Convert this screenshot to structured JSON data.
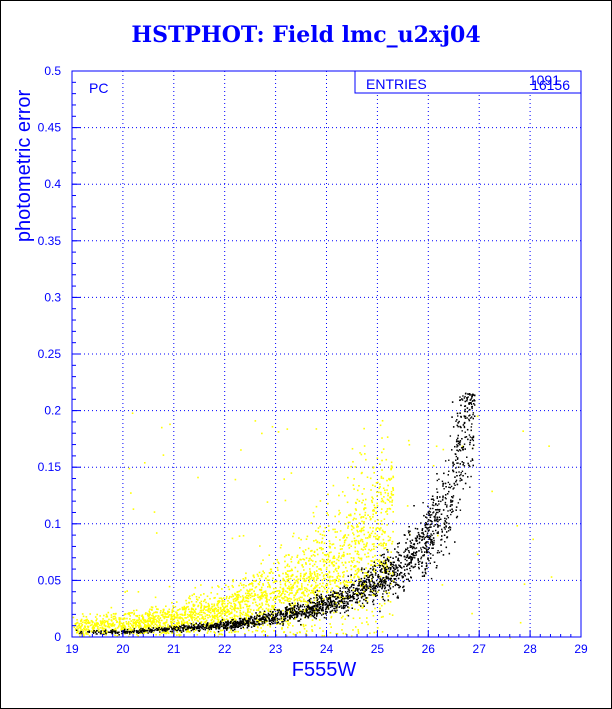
{
  "title": "HSTPHOT: Field lmc_u2xj04",
  "chart_data": {
    "type": "scatter",
    "xlabel": "F555W",
    "ylabel": "photometric error",
    "xlim": [
      19,
      29
    ],
    "ylim": [
      0,
      0.5
    ],
    "x_ticks": [
      "19",
      "20",
      "21",
      "22",
      "23",
      "24",
      "25",
      "26",
      "27",
      "28",
      "29"
    ],
    "y_ticks": [
      "0",
      "0.05",
      "0.1",
      "0.15",
      "0.2",
      "0.25",
      "0.3",
      "0.35",
      "0.4",
      "0.45",
      "0.5"
    ],
    "grid": true,
    "grid_color": "#0000ff",
    "panel_label": "PC",
    "stats_box": {
      "label": "ENTRIES",
      "values": [
        "16156",
        "1091"
      ],
      "placement": "top-right"
    },
    "series": [
      {
        "color": "#ffff00",
        "trend": [
          [
            19.0,
            0.01
          ],
          [
            20.0,
            0.012
          ],
          [
            21.0,
            0.016
          ],
          [
            22.0,
            0.024
          ],
          [
            22.5,
            0.03
          ],
          [
            23.0,
            0.036
          ],
          [
            23.5,
            0.044
          ],
          [
            24.0,
            0.055
          ],
          [
            24.5,
            0.07
          ],
          [
            25.0,
            0.09
          ]
        ],
        "scatter_extent": [
          [
            19.0,
            0.0
          ],
          [
            28.5,
            0.215
          ]
        ]
      },
      {
        "color": "#000000",
        "trend": [
          [
            19.0,
            0.005
          ],
          [
            20.0,
            0.005
          ],
          [
            21.0,
            0.008
          ],
          [
            22.0,
            0.011
          ],
          [
            23.0,
            0.018
          ],
          [
            24.0,
            0.03
          ],
          [
            24.5,
            0.038
          ],
          [
            25.0,
            0.05
          ],
          [
            25.5,
            0.065
          ],
          [
            26.0,
            0.09
          ],
          [
            26.3,
            0.115
          ],
          [
            26.5,
            0.14
          ],
          [
            26.7,
            0.18
          ],
          [
            26.9,
            0.21
          ]
        ],
        "scatter_extent": [
          [
            19.0,
            0.0
          ],
          [
            26.9,
            0.215
          ]
        ]
      }
    ]
  }
}
